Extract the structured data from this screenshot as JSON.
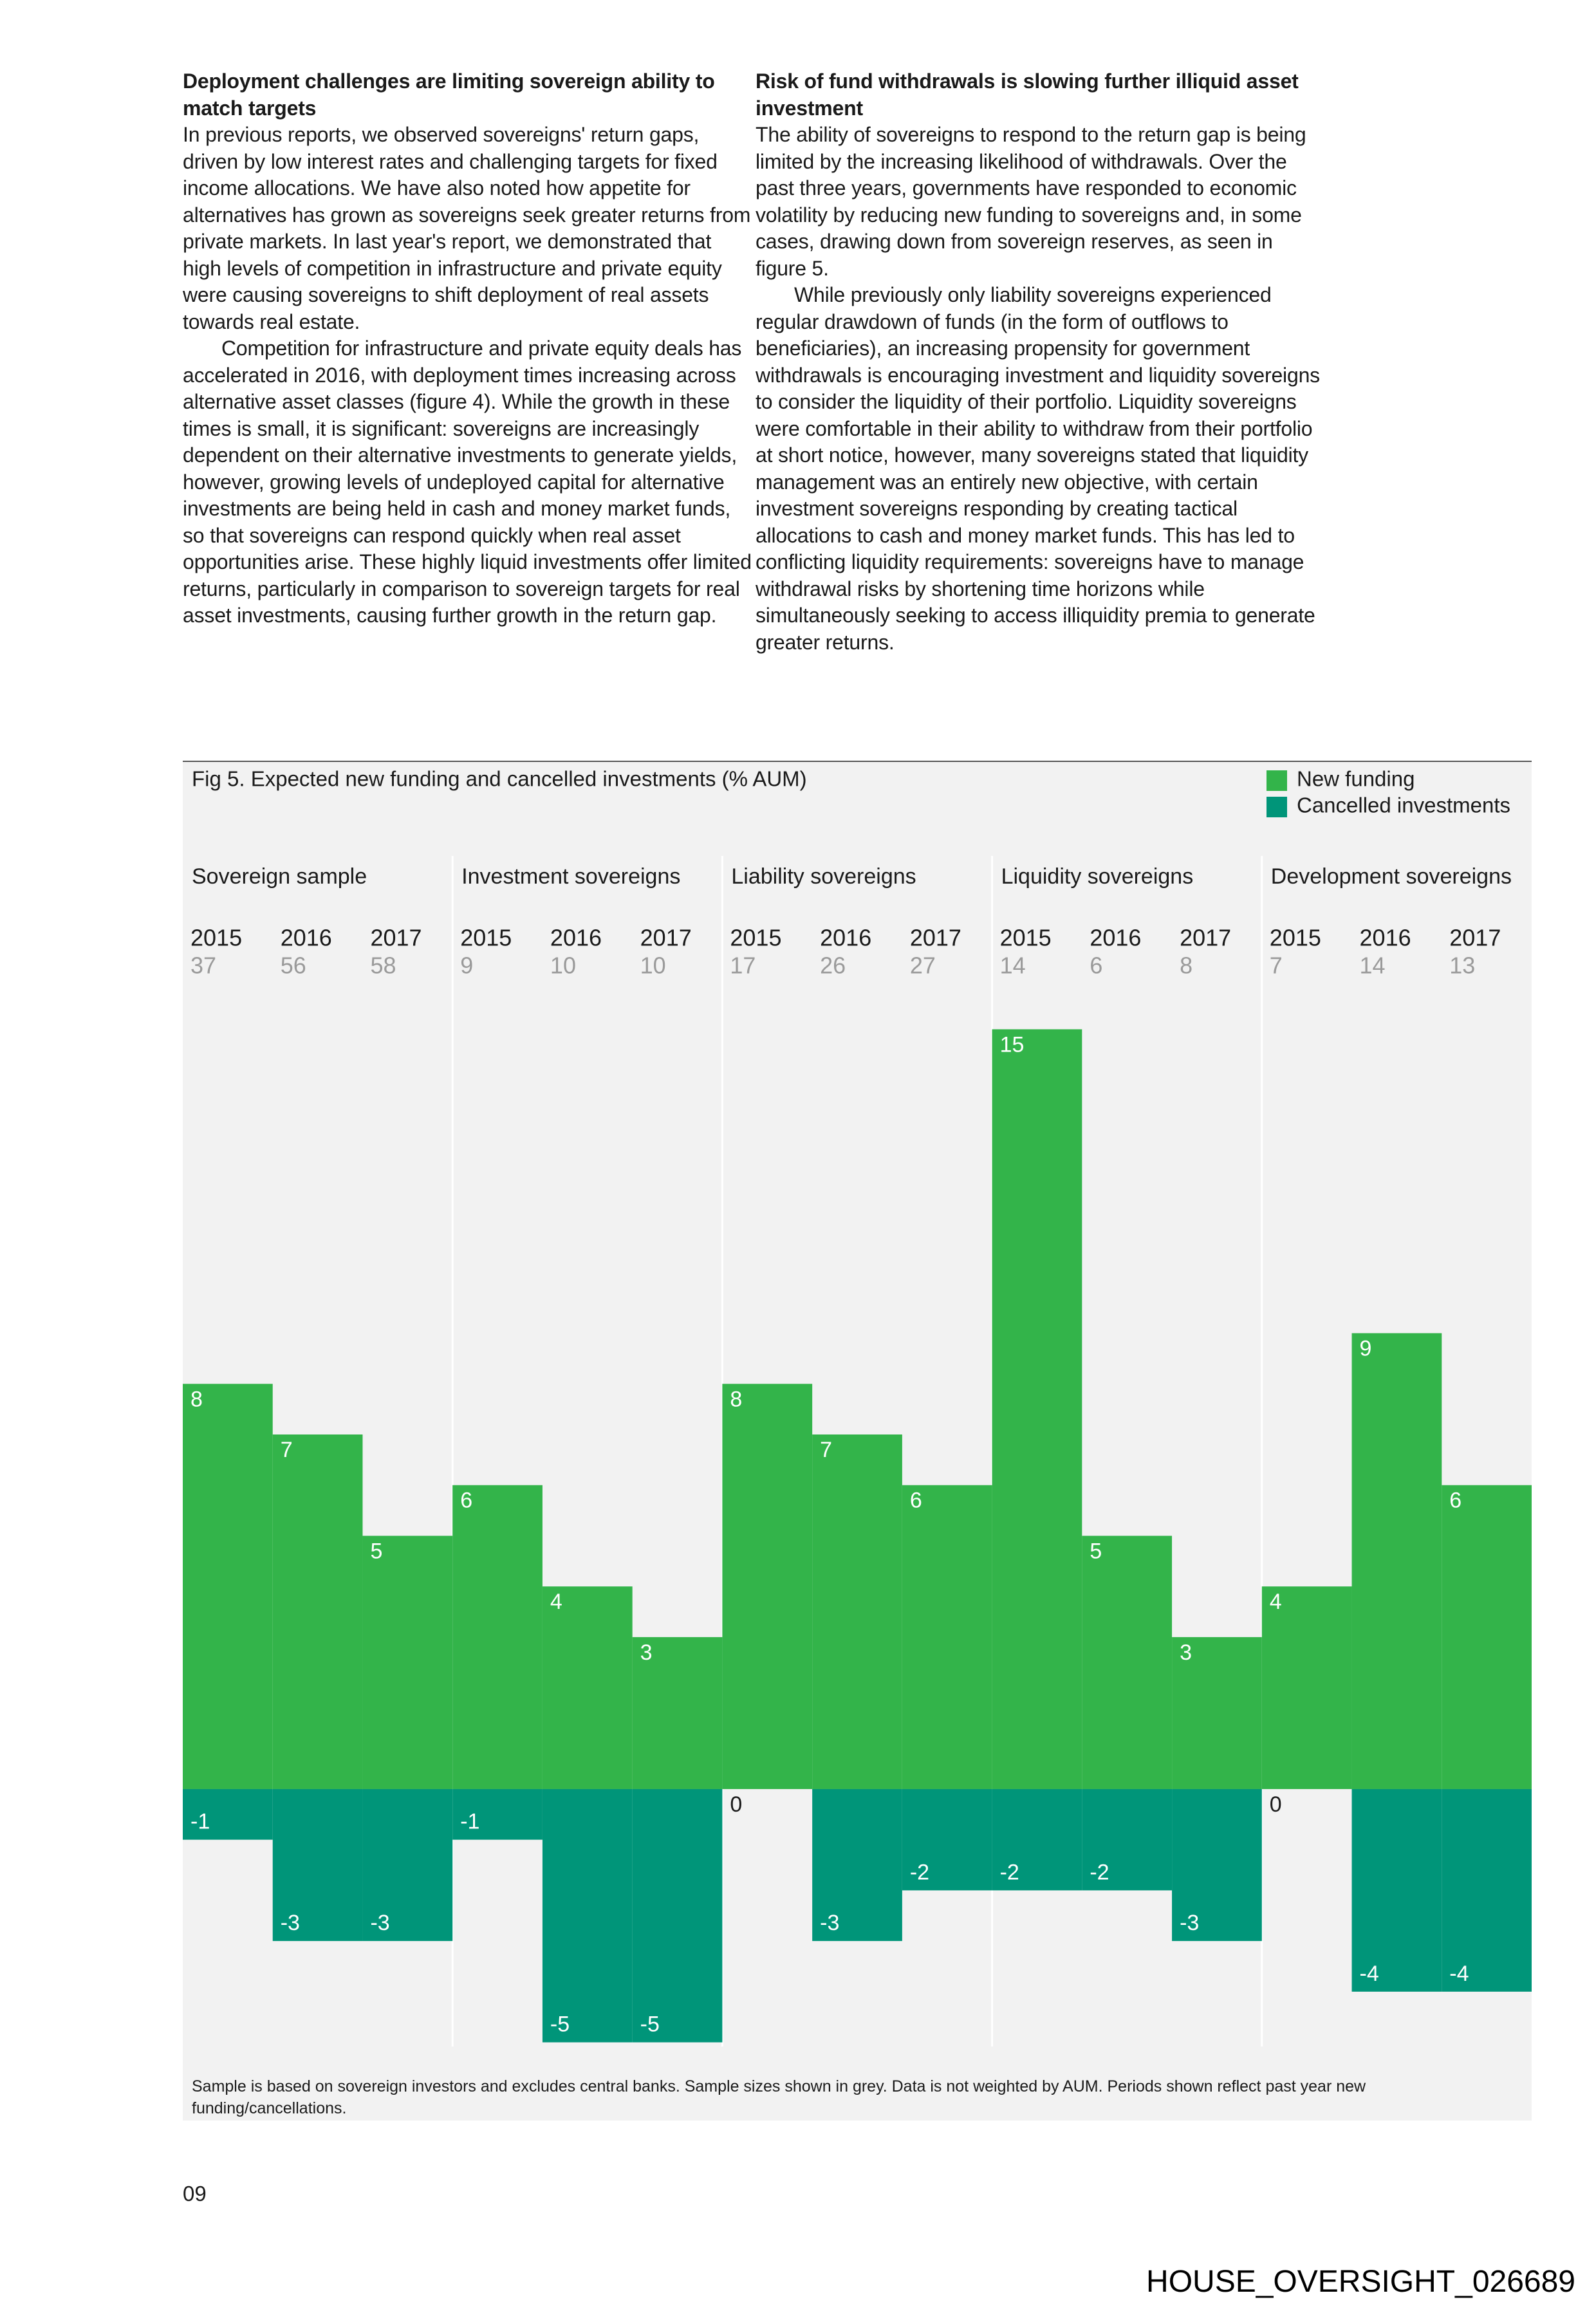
{
  "left_column": {
    "heading": "Deployment challenges are limiting sovereign ability to match targets",
    "paragraphs": [
      "In previous reports, we observed sovereigns' return gaps, driven by low interest rates and challenging targets for fixed income allocations. We have also noted how appetite for alternatives has grown as sovereigns seek greater returns from private markets. In last year's report, we demonstrated that high levels of competition in infrastructure and private equity were causing sovereigns to shift deployment of real assets towards real estate.",
      "Competition for infrastructure and private equity deals has accelerated in 2016, with deployment times increasing across alternative asset classes (figure 4). While the growth in these times is small, it is significant: sovereigns are increasingly dependent on their alternative investments to generate yields, however, growing levels of undeployed capital for alternative investments are being held in cash and money market funds, so that sovereigns can respond quickly when real asset opportunities arise. These highly liquid investments offer limited returns, particularly in comparison to sovereign targets for real asset investments, causing further growth in the return gap."
    ]
  },
  "right_column": {
    "heading": "Risk of fund withdrawals is slowing further illiquid asset investment",
    "paragraphs": [
      "The ability of sovereigns to respond to the return gap is being limited by the increasing likelihood of withdrawals. Over the past three years, governments have responded to economic volatility by reducing new funding to sovereigns and, in some cases, drawing down from sovereign reserves, as seen in figure 5.",
      "While previously only liability sovereigns experienced regular drawdown of funds (in the form of outflows to beneficiaries), an increasing propensity for government withdrawals is encouraging investment and liquidity sovereigns to consider the liquidity of their portfolio. Liquidity sovereigns were comfortable in their ability to withdraw from their portfolio at short notice, however, many sovereigns stated that liquidity management was an entirely new objective, with certain investment sovereigns responding by creating tactical allocations to cash and money market funds. This has led to conflicting liquidity requirements: sovereigns have to manage withdrawal risks by shortening time horizons while simultaneously seeking to access illiquidity premia to generate greater returns."
    ]
  },
  "chart_data": {
    "type": "bar",
    "title": "Fig 5. Expected new funding and cancelled investments (% AUM)",
    "groups": [
      "Sovereign sample",
      "Investment sovereigns",
      "Liability sovereigns",
      "Liquidity sovereigns",
      "Development sovereigns"
    ],
    "categories": [
      "2015",
      "2016",
      "2017",
      "2015",
      "2016",
      "2017",
      "2015",
      "2016",
      "2017",
      "2015",
      "2016",
      "2017",
      "2015",
      "2016",
      "2017"
    ],
    "sample_sizes": [
      37,
      56,
      58,
      9,
      10,
      10,
      17,
      26,
      27,
      14,
      6,
      8,
      7,
      14,
      13
    ],
    "series": [
      {
        "name": "New funding",
        "color": "#33b44a",
        "values": [
          8,
          7,
          5,
          6,
          4,
          3,
          8,
          7,
          6,
          15,
          5,
          3,
          4,
          9,
          6
        ]
      },
      {
        "name": "Cancelled investments",
        "color": "#009579",
        "values": [
          -1,
          -3,
          -3,
          -1,
          -5,
          -5,
          0,
          -3,
          -2,
          -2,
          -2,
          -3,
          0,
          -4,
          -4
        ]
      }
    ],
    "ylim": [
      -5,
      15.5
    ],
    "legend": "top-right",
    "footnote": "Sample is based on sovereign investors and excludes central banks. Sample sizes shown in grey. Data is not weighted by AUM. Periods shown reflect past year new funding/cancellations."
  },
  "page_number": "09",
  "footer_id": "HOUSE_OVERSIGHT_026689"
}
